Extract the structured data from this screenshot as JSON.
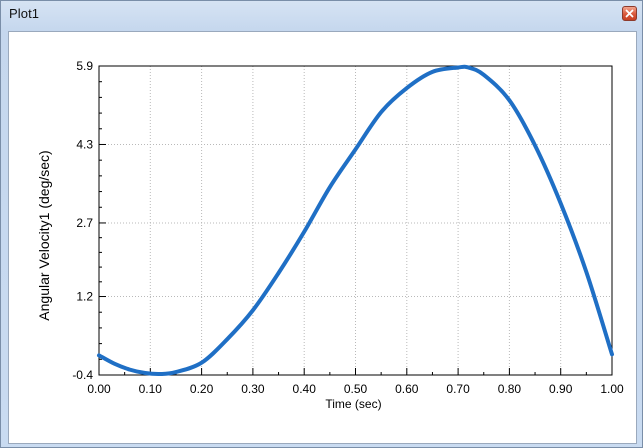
{
  "window": {
    "title": "Plot1",
    "close_icon": "close-icon",
    "accent_color": "#d9583b"
  },
  "chart_data": {
    "type": "line",
    "xlabel": "Time (sec)",
    "ylabel": "Angular Velocity1 (deg/sec)",
    "xlim": [
      0,
      1
    ],
    "ylim": [
      -0.4,
      5.9
    ],
    "x_ticks": [
      "0.00",
      "0.10",
      "0.20",
      "0.30",
      "0.40",
      "0.50",
      "0.60",
      "0.70",
      "0.80",
      "0.90",
      "1.00"
    ],
    "y_ticks": [
      "-0.4",
      "1.2",
      "2.7",
      "4.3",
      "5.9"
    ],
    "grid": true,
    "series": [
      {
        "color": "#1f6fc5",
        "x": [
          0.0,
          0.03,
          0.06,
          0.09,
          0.12,
          0.15,
          0.2,
          0.25,
          0.3,
          0.35,
          0.4,
          0.45,
          0.5,
          0.55,
          0.6,
          0.65,
          0.7,
          0.72,
          0.75,
          0.8,
          0.85,
          0.9,
          0.95,
          1.0
        ],
        "y": [
          0.0,
          -0.17,
          -0.29,
          -0.36,
          -0.38,
          -0.34,
          -0.15,
          0.33,
          0.92,
          1.68,
          2.52,
          3.43,
          4.2,
          4.96,
          5.45,
          5.78,
          5.87,
          5.87,
          5.72,
          5.2,
          4.28,
          3.1,
          1.7,
          0.02
        ]
      }
    ]
  }
}
